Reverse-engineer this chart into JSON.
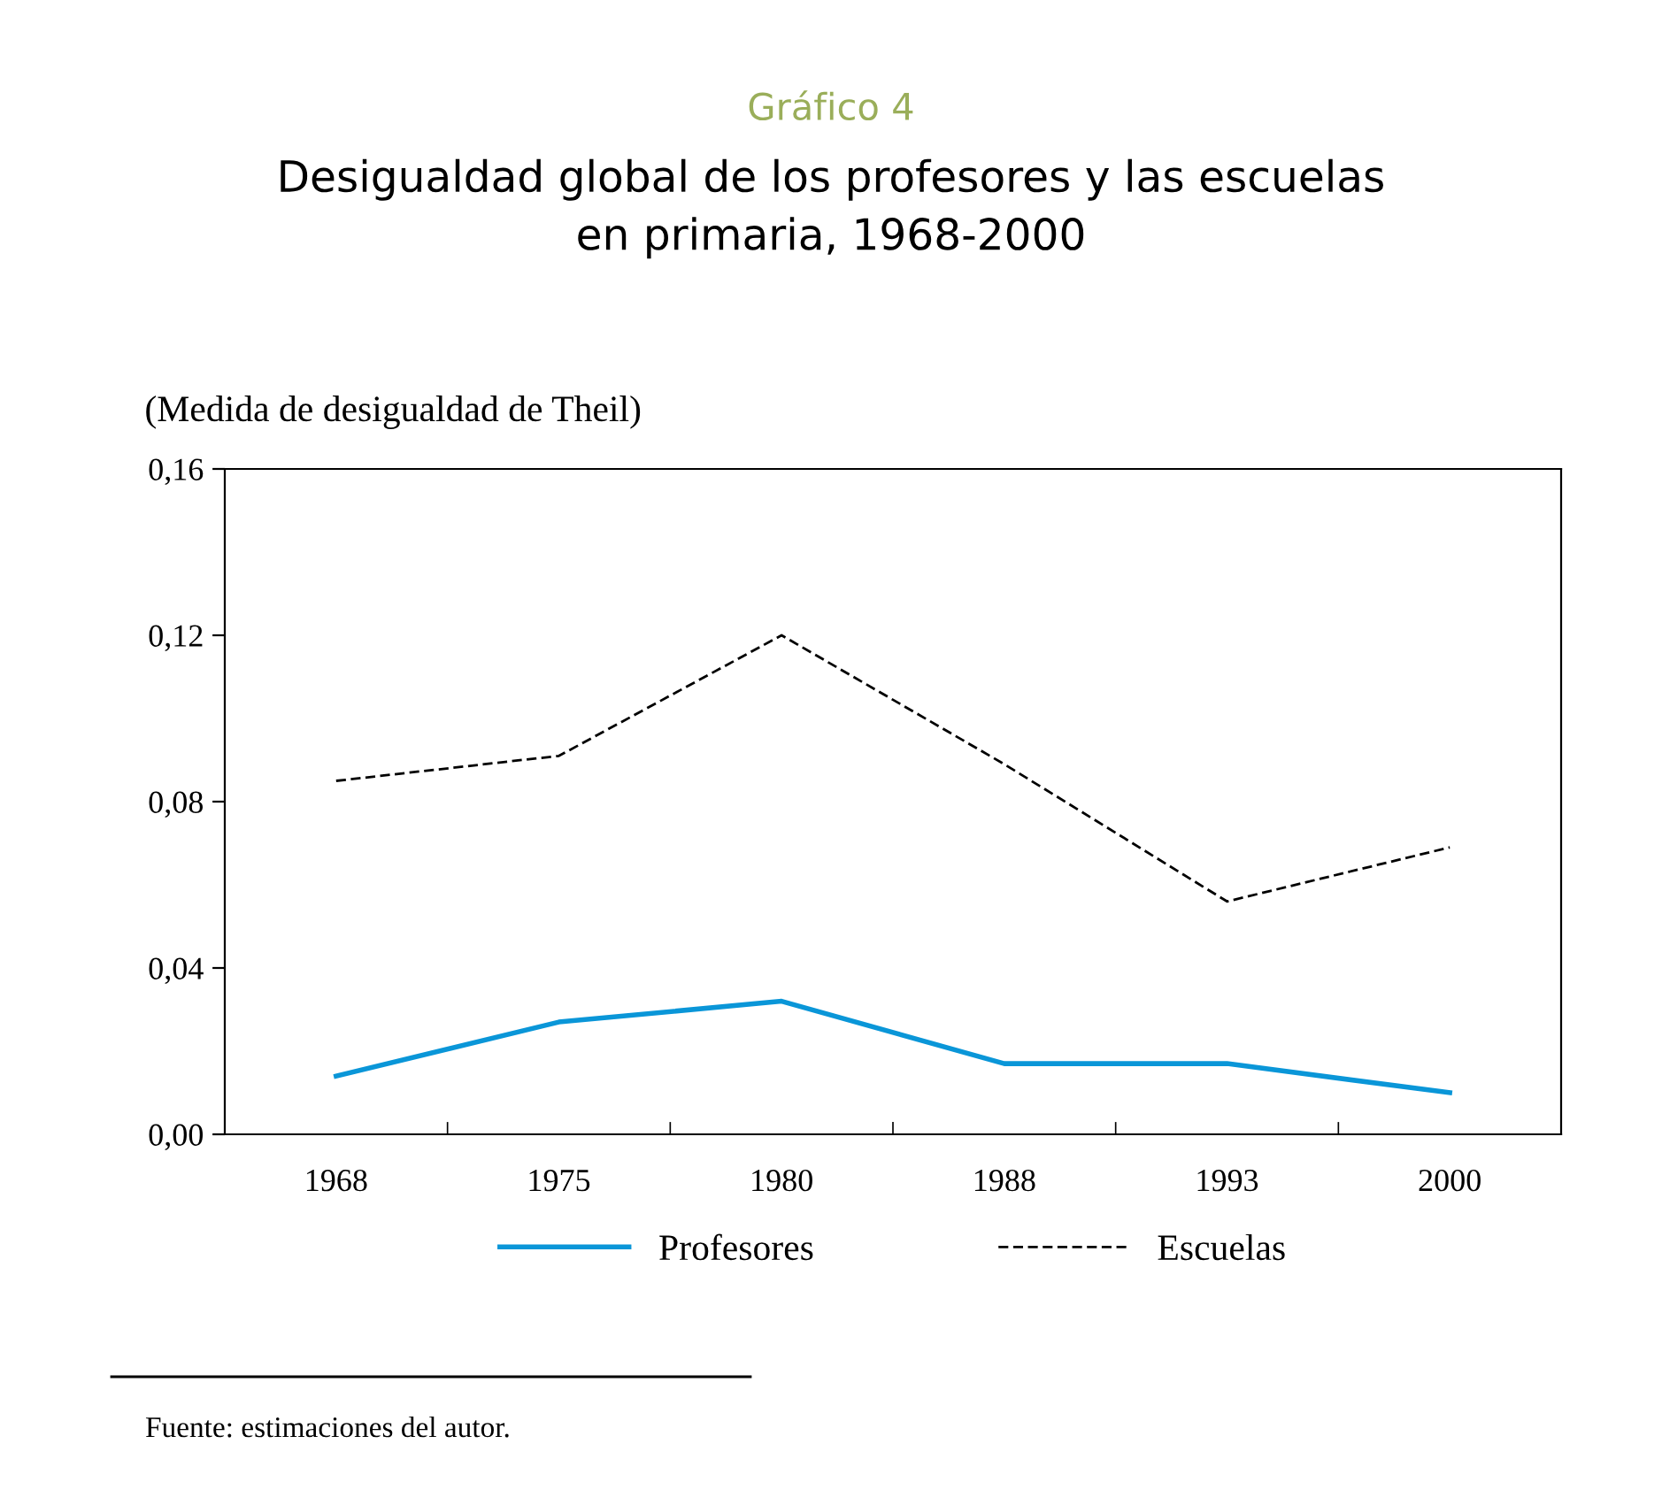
{
  "chart_data": {
    "type": "line",
    "title": "Gráfico 4",
    "subtitle": "Desigualdad global de los profesores y las escuelas\nen primaria, 1968-2000",
    "ylabel": "(Medida de desigualdad de Theil)",
    "categories": [
      "1968",
      "1975",
      "1980",
      "1988",
      "1993",
      "2000"
    ],
    "series": [
      {
        "name": "Profesores",
        "color": "#0a96d8",
        "line_style": "solid",
        "values": [
          0.014,
          0.027,
          0.032,
          0.017,
          0.017,
          0.01
        ]
      },
      {
        "name": "Escuelas",
        "color": "#000000",
        "line_style": "dashed",
        "values": [
          0.085,
          0.091,
          0.12,
          0.089,
          0.056,
          0.069
        ]
      }
    ],
    "ylim": [
      0,
      0.16
    ],
    "yticks": [
      {
        "value": 0,
        "label": "0,00"
      },
      {
        "value": 0.04,
        "label": "0,04"
      },
      {
        "value": 0.08,
        "label": "0,08"
      },
      {
        "value": 0.12,
        "label": "0,12"
      },
      {
        "value": 0.16,
        "label": "0,16"
      }
    ],
    "grid": false,
    "legend": "bottom",
    "marker": "none",
    "annotations": [
      "Fuente: estimaciones del autor."
    ]
  }
}
